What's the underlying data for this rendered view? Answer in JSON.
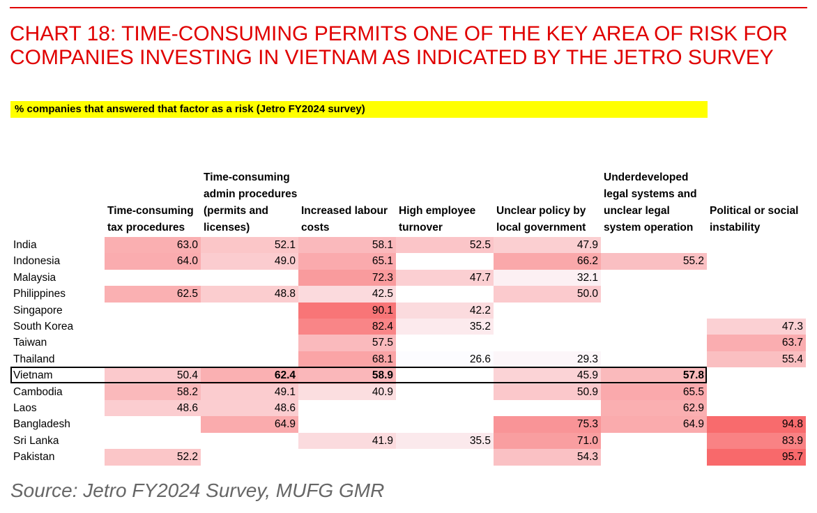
{
  "title": "CHART 18: TIME-CONSUMING PERMITS ONE OF THE KEY AREA OF RISK FOR COMPANIES INVESTING IN VIETNAM AS INDICATED BY THE JETRO SURVEY",
  "source": "Source: Jetro FY2024 Survey, MUFG GMR",
  "chart_data": {
    "type": "heatmap",
    "subtitle": "% companies that answered that factor as a risk (Jetro FY2024 survey)",
    "columns": [
      "Time-consuming tax procedures",
      "Time-consuming admin procedures (permits and licenses)",
      "Increased labour costs",
      "High employee turnover",
      "Unclear policy by local government",
      "Underdeveloped legal systems and unclear legal system operation",
      "Political or social instability"
    ],
    "rows": [
      "India",
      "Indonesia",
      "Malaysia",
      "Philippines",
      "Singapore",
      "South Korea",
      "Taiwan",
      "Thailand",
      "Vietnam",
      "Cambodia",
      "Laos",
      "Bangladesh",
      "Sri Lanka",
      "Pakistan"
    ],
    "highlight_row": "Vietnam",
    "values": [
      [
        63.0,
        52.1,
        58.1,
        52.5,
        47.9,
        null,
        null
      ],
      [
        64.0,
        49.0,
        65.1,
        null,
        66.2,
        55.2,
        null
      ],
      [
        null,
        null,
        72.3,
        47.7,
        32.1,
        null,
        null
      ],
      [
        62.5,
        48.8,
        42.5,
        null,
        50.0,
        null,
        null
      ],
      [
        null,
        null,
        90.1,
        42.2,
        null,
        null,
        null
      ],
      [
        null,
        null,
        82.4,
        35.2,
        null,
        null,
        47.3
      ],
      [
        null,
        null,
        57.5,
        null,
        null,
        null,
        63.7
      ],
      [
        null,
        null,
        68.1,
        26.6,
        29.3,
        null,
        55.4
      ],
      [
        50.4,
        62.4,
        58.9,
        null,
        45.9,
        57.8,
        null
      ],
      [
        58.2,
        49.1,
        40.9,
        null,
        50.9,
        65.5,
        null
      ],
      [
        48.6,
        48.6,
        null,
        null,
        null,
        62.9,
        null
      ],
      [
        null,
        64.9,
        null,
        null,
        75.3,
        64.9,
        94.8
      ],
      [
        null,
        null,
        41.9,
        35.5,
        71.0,
        null,
        83.9
      ],
      [
        52.2,
        null,
        null,
        null,
        54.3,
        null,
        95.7
      ]
    ],
    "color_scale": {
      "low": "#fcfcff",
      "high": "#f8696b"
    }
  }
}
